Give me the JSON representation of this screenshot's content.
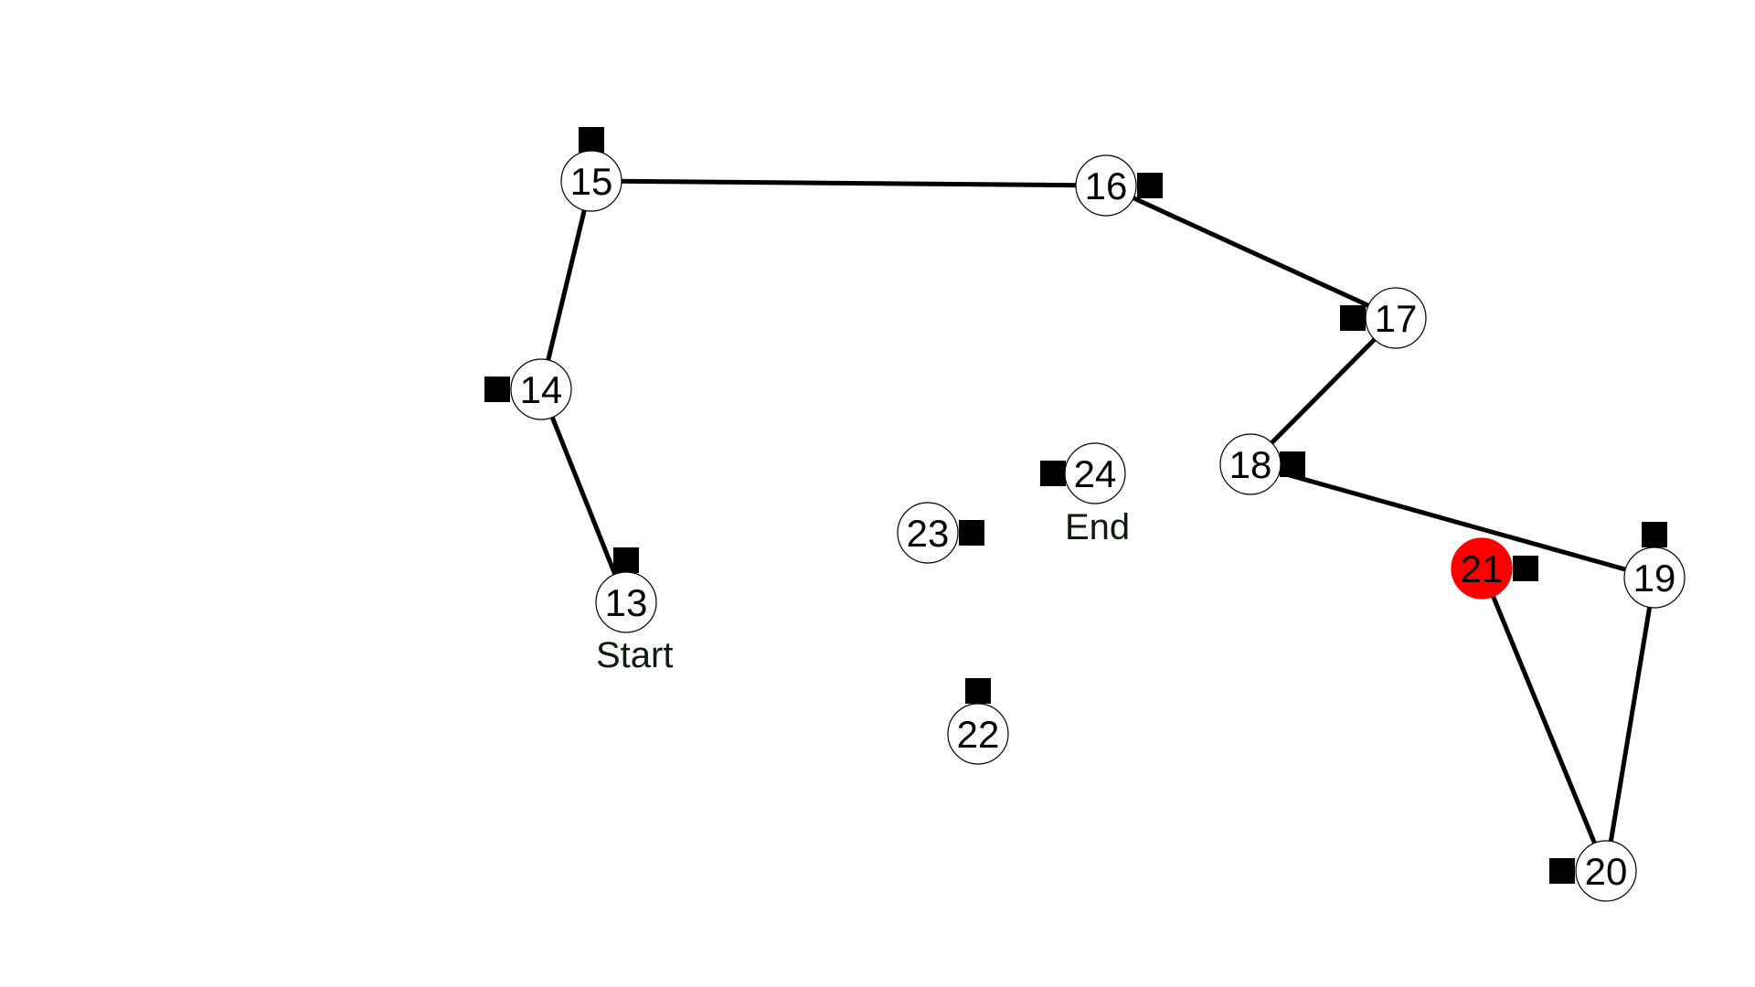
{
  "puzzle": {
    "nodes": [
      {
        "label": "13",
        "active": false
      },
      {
        "label": "14",
        "active": false
      },
      {
        "label": "15",
        "active": false
      },
      {
        "label": "16",
        "active": false
      },
      {
        "label": "17",
        "active": false
      },
      {
        "label": "18",
        "active": false
      },
      {
        "label": "19",
        "active": false
      },
      {
        "label": "20",
        "active": false
      },
      {
        "label": "21",
        "active": true
      },
      {
        "label": "22",
        "active": false
      },
      {
        "label": "23",
        "active": false
      },
      {
        "label": "24",
        "active": false
      }
    ],
    "path": [
      "13",
      "14",
      "15",
      "16",
      "17",
      "18",
      "19",
      "20",
      "21"
    ],
    "start_label": "Start",
    "end_label": "End",
    "colors": {
      "active_node": "#ff0000",
      "node_fill": "#ffffff",
      "edge": "#000000",
      "marker": "#000000"
    }
  }
}
